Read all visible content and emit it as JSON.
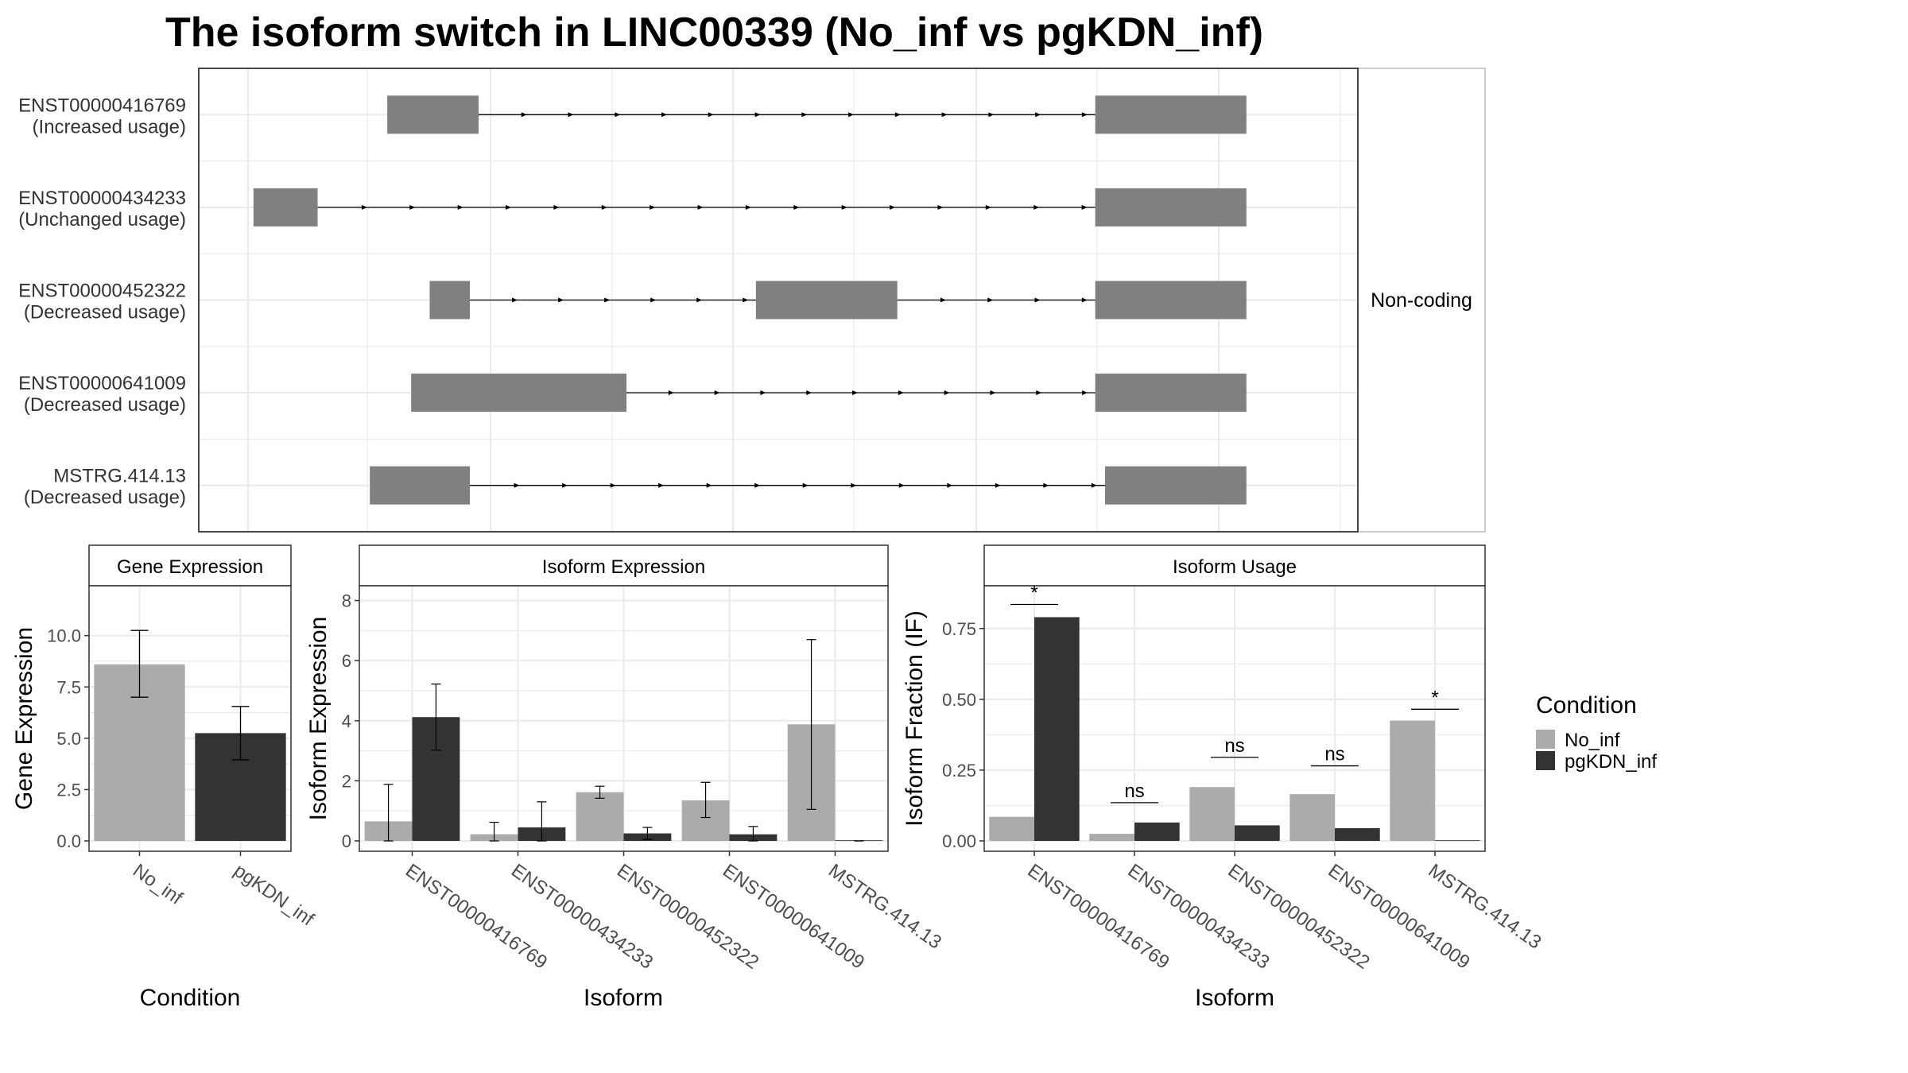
{
  "title": "The isoform switch in LINC00339 (No_inf vs pgKDN_inf)",
  "colors": {
    "no_inf": "#ababab",
    "pgkdn_inf": "#333333",
    "exon": "#808080",
    "grid": "#ebebeb",
    "strip_bg": "#ffffff",
    "panel_border": "#333333",
    "facet_border": "#bbbbbb"
  },
  "chart_data": [
    {
      "id": "structure",
      "type": "gene-structure",
      "facet_label": "Non-coding",
      "transcripts": [
        {
          "name": "ENST00000416769",
          "status": "(Increased usage)",
          "exons": [
            [
              0.128,
              0.212
            ],
            [
              0.779,
              0.918
            ]
          ]
        },
        {
          "name": "ENST00000434233",
          "status": "(Unchanged usage)",
          "exons": [
            [
              0.005,
              0.064
            ],
            [
              0.779,
              0.918
            ]
          ]
        },
        {
          "name": "ENST00000452322",
          "status": "(Decreased usage)",
          "exons": [
            [
              0.167,
              0.204
            ],
            [
              0.467,
              0.597
            ],
            [
              0.779,
              0.918
            ]
          ]
        },
        {
          "name": "ENST00000641009",
          "status": "(Decreased usage)",
          "exons": [
            [
              0.15,
              0.348
            ],
            [
              0.779,
              0.918
            ]
          ]
        },
        {
          "name": "MSTRG.414.13",
          "status": "(Decreased usage)",
          "exons": [
            [
              0.112,
              0.204
            ],
            [
              0.788,
              0.918
            ]
          ]
        }
      ]
    },
    {
      "id": "gene_expression",
      "type": "bar",
      "strip": "Gene Expression",
      "xlabel": "Condition",
      "ylabel": "Gene Expression",
      "ylim": [
        0,
        12
      ],
      "yticks": [
        "0.0",
        "2.5",
        "5.0",
        "7.5",
        "10.0"
      ],
      "categories": [
        "No_inf",
        "pgKDN_inf"
      ],
      "values": [
        8.6,
        5.25
      ],
      "errors": [
        [
          7.0,
          10.25
        ],
        [
          3.95,
          6.55
        ]
      ]
    },
    {
      "id": "isoform_expression",
      "type": "bar",
      "strip": "Isoform Expression",
      "xlabel": "Isoform",
      "ylabel": "Isoform Expression",
      "ylim": [
        0,
        8.2
      ],
      "yticks": [
        "0",
        "2",
        "4",
        "6",
        "8"
      ],
      "categories": [
        "ENST00000416769",
        "ENST00000434233",
        "ENST00000452322",
        "ENST00000641009",
        "MSTRG.414.13"
      ],
      "series": [
        {
          "name": "No_inf",
          "values": [
            0.65,
            0.22,
            1.62,
            1.35,
            3.88
          ],
          "errors": [
            [
              0.0,
              1.88
            ],
            [
              0.0,
              0.62
            ],
            [
              1.42,
              1.82
            ],
            [
              0.78,
              1.95
            ],
            [
              1.05,
              6.7
            ]
          ]
        },
        {
          "name": "pgKDN_inf",
          "values": [
            4.12,
            0.45,
            0.25,
            0.22,
            0.0
          ],
          "errors": [
            [
              3.02,
              5.22
            ],
            [
              0.0,
              1.3
            ],
            [
              0.05,
              0.45
            ],
            [
              0.0,
              0.48
            ],
            [
              0.0,
              0.0
            ]
          ]
        }
      ]
    },
    {
      "id": "isoform_usage",
      "type": "bar",
      "strip": "Isoform Usage",
      "xlabel": "Isoform",
      "ylabel": "Isoform Fraction (IF)",
      "ylim": [
        0,
        0.87
      ],
      "yticks": [
        "0.00",
        "0.25",
        "0.50",
        "0.75"
      ],
      "categories": [
        "ENST00000416769",
        "ENST00000434233",
        "ENST00000452322",
        "ENST00000641009",
        "MSTRG.414.13"
      ],
      "series": [
        {
          "name": "No_inf",
          "values": [
            0.085,
            0.025,
            0.19,
            0.165,
            0.425
          ]
        },
        {
          "name": "pgKDN_inf",
          "values": [
            0.79,
            0.065,
            0.055,
            0.045,
            0.0
          ]
        }
      ],
      "significance": [
        {
          "label": "*",
          "y": 0.835
        },
        {
          "label": "ns",
          "y": 0.135
        },
        {
          "label": "ns",
          "y": 0.295
        },
        {
          "label": "ns",
          "y": 0.265
        },
        {
          "label": "*",
          "y": 0.465
        }
      ]
    }
  ],
  "legend": {
    "title": "Condition",
    "items": [
      "No_inf",
      "pgKDN_inf"
    ]
  }
}
